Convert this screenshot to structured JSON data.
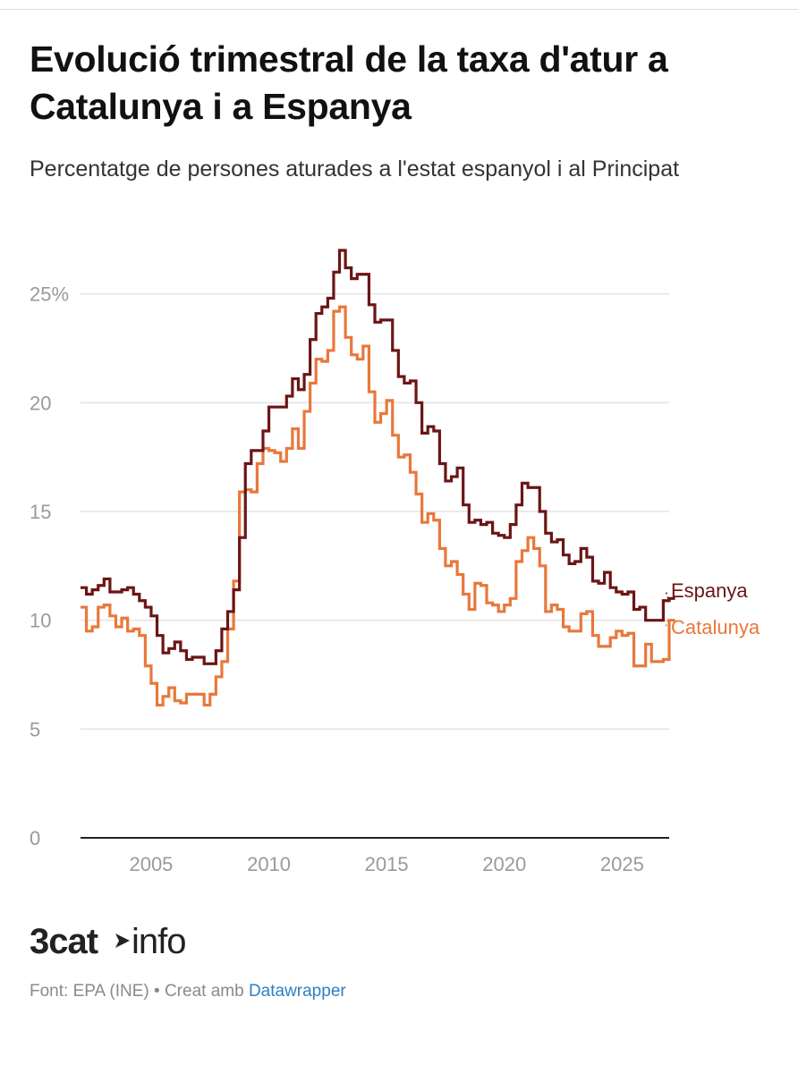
{
  "header": {
    "title": "Evolució trimestral de la taxa d'atur a Catalunya i a Espanya",
    "subtitle": "Percentatge de persones aturades a l'estat espanyol i al Principat"
  },
  "footer": {
    "source_prefix": "Font: EPA (INE) • Creat amb",
    "tool": "Datawrapper"
  },
  "logo": {
    "text": "3cat info"
  },
  "colors": {
    "espanya": "#6b1515",
    "catalunya": "#e8783b",
    "grid": "#e3e3e3",
    "axis": "#222222"
  },
  "chart_data": {
    "type": "line",
    "step": true,
    "ylim": [
      0,
      27
    ],
    "xlim": [
      2002,
      2027
    ],
    "yticks": [
      0,
      5,
      10,
      15,
      20,
      25
    ],
    "ytick_labels": [
      "0",
      "5",
      "10",
      "15",
      "20",
      "25%"
    ],
    "xticks": [
      2005,
      2010,
      2015,
      2020,
      2025
    ],
    "xtick_labels": [
      "2005",
      "2010",
      "2015",
      "2020",
      "2025"
    ],
    "x_start": 2002,
    "x_step": 0.25,
    "series": [
      {
        "name": "Espanya",
        "key": "espanya",
        "values": [
          11.5,
          11.2,
          11.4,
          11.6,
          11.9,
          11.3,
          11.3,
          11.4,
          11.5,
          11.2,
          10.9,
          10.6,
          10.2,
          9.3,
          8.5,
          8.7,
          9.0,
          8.6,
          8.2,
          8.3,
          8.3,
          8.0,
          8.0,
          8.6,
          9.6,
          10.4,
          11.4,
          13.8,
          17.2,
          17.8,
          17.8,
          18.7,
          19.8,
          19.8,
          19.8,
          20.3,
          21.1,
          20.6,
          21.3,
          22.9,
          24.1,
          24.4,
          24.8,
          26.0,
          27.0,
          26.2,
          25.7,
          25.9,
          25.9,
          24.5,
          23.7,
          23.8,
          23.8,
          22.4,
          21.2,
          20.9,
          21.0,
          20.0,
          18.6,
          18.9,
          18.7,
          17.2,
          16.4,
          16.6,
          17.0,
          15.3,
          14.5,
          14.6,
          14.4,
          14.5,
          14.0,
          13.9,
          13.8,
          14.4,
          15.3,
          16.3,
          16.1,
          16.1,
          15.0,
          14.0,
          13.6,
          13.7,
          13.0,
          12.6,
          12.7,
          13.3,
          12.9,
          11.8,
          11.7,
          12.2,
          11.5,
          11.3,
          11.2,
          11.3,
          10.5,
          10.6,
          10.0,
          10.0,
          10.0,
          10.9,
          11.0
        ]
      },
      {
        "name": "Catalunya",
        "key": "catalunya",
        "values": [
          10.6,
          9.5,
          9.7,
          10.6,
          10.7,
          10.2,
          9.7,
          10.1,
          9.5,
          9.6,
          9.3,
          7.9,
          7.1,
          6.1,
          6.5,
          6.9,
          6.3,
          6.2,
          6.6,
          6.6,
          6.6,
          6.1,
          6.6,
          7.4,
          8.1,
          9.6,
          11.8,
          15.9,
          16.0,
          15.9,
          17.2,
          17.9,
          17.8,
          17.7,
          17.3,
          17.9,
          18.8,
          17.9,
          19.6,
          20.9,
          22.0,
          21.9,
          22.4,
          24.2,
          24.4,
          23.0,
          22.2,
          22.0,
          22.6,
          20.5,
          19.1,
          19.5,
          20.1,
          18.5,
          17.5,
          17.6,
          16.8,
          15.8,
          14.5,
          14.9,
          14.6,
          13.3,
          12.5,
          12.7,
          12.1,
          11.2,
          10.5,
          11.7,
          11.6,
          10.8,
          10.7,
          10.4,
          10.7,
          11.0,
          12.7,
          13.2,
          13.8,
          13.3,
          12.5,
          10.4,
          10.7,
          10.5,
          9.7,
          9.5,
          9.5,
          10.3,
          10.4,
          9.3,
          8.8,
          8.8,
          9.2,
          9.5,
          9.3,
          9.4,
          7.9,
          7.9,
          8.9,
          8.1,
          8.1,
          8.2,
          10.0
        ]
      }
    ]
  }
}
